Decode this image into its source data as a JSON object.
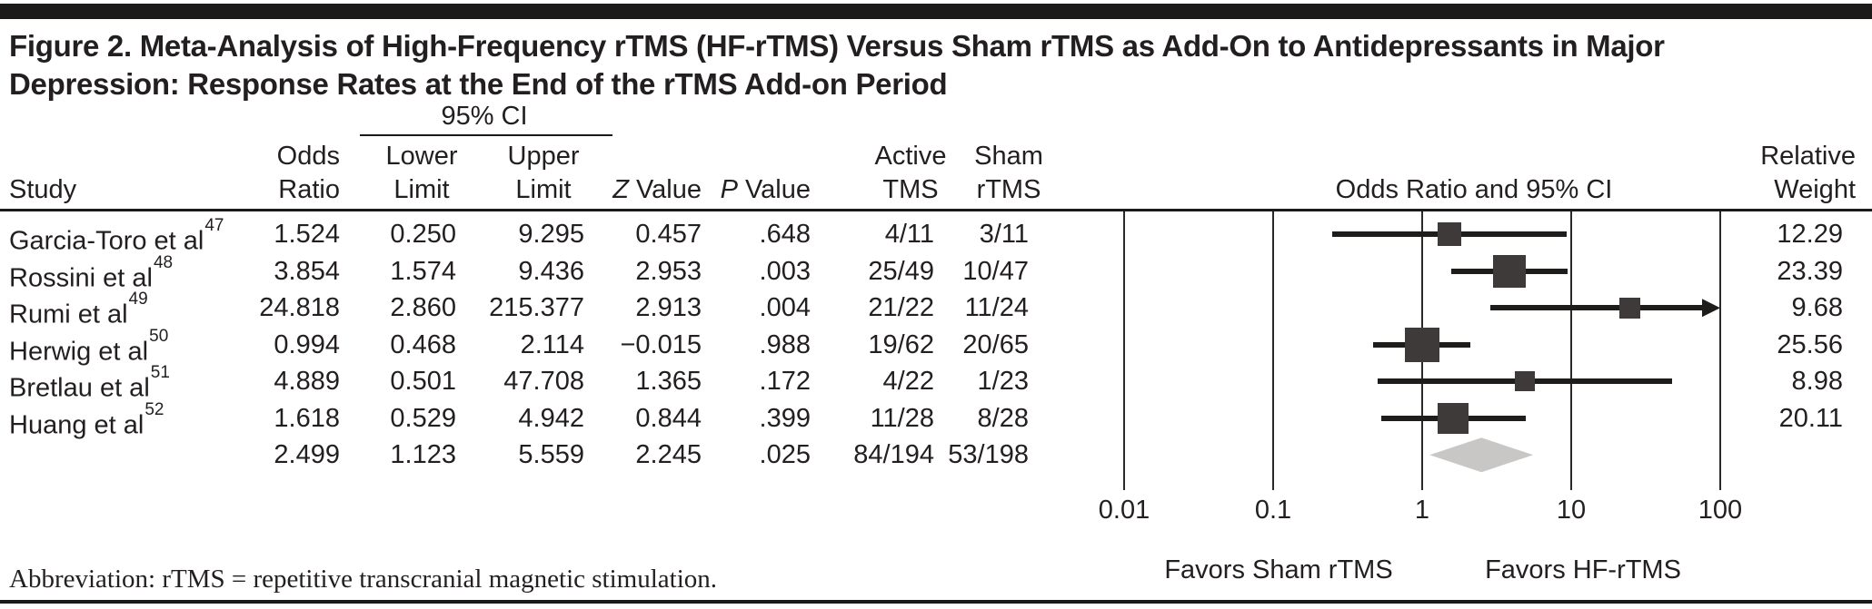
{
  "figure": {
    "title_line1": "Figure 2. Meta-Analysis of High-Frequency rTMS (HF-rTMS) Versus Sham rTMS as Add-On to Antidepressants in Major",
    "title_line2": "Depression: Response Rates at the End of the rTMS Add-on Period",
    "footnote": "Abbreviation: rTMS = repetitive transcranial magnetic stimulation."
  },
  "table": {
    "headers": {
      "study": "Study",
      "odds1": "Odds",
      "odds2": "Ratio",
      "ci_group": "95% CI",
      "lower1": "Lower",
      "lower2": "Limit",
      "upper1": "Upper",
      "upper2": "Limit",
      "z1": "Z",
      "z2": " Value",
      "p1": "P",
      "p2": " Value",
      "active1": "Active",
      "active2": "TMS",
      "sham1": "Sham",
      "sham2": "rTMS",
      "plot": "Odds Ratio and 95% CI",
      "weight1": "Relative",
      "weight2": "Weight"
    },
    "rows": [
      {
        "study": "Garcia-Toro et al",
        "ref": "47",
        "or": "1.524",
        "lower": "0.250",
        "upper": "9.295",
        "z": "0.457",
        "p": ".648",
        "active": "4/11",
        "sham": "3/11",
        "weight": "12.29"
      },
      {
        "study": "Rossini et al",
        "ref": "48",
        "or": "3.854",
        "lower": "1.574",
        "upper": "9.436",
        "z": "2.953",
        "p": ".003",
        "active": "25/49",
        "sham": "10/47",
        "weight": "23.39"
      },
      {
        "study": "Rumi et al",
        "ref": "49",
        "or": "24.818",
        "lower": "2.860",
        "upper": "215.377",
        "z": "2.913",
        "p": ".004",
        "active": "21/22",
        "sham": "11/24",
        "weight": "9.68"
      },
      {
        "study": "Herwig et al",
        "ref": "50",
        "or": "0.994",
        "lower": "0.468",
        "upper": "2.114",
        "z": "−0.015",
        "p": ".988",
        "active": "19/62",
        "sham": "20/65",
        "weight": "25.56"
      },
      {
        "study": "Bretlau et al",
        "ref": "51",
        "or": "4.889",
        "lower": "0.501",
        "upper": "47.708",
        "z": "1.365",
        "p": ".172",
        "active": "4/22",
        "sham": "1/23",
        "weight": "8.98"
      },
      {
        "study": "Huang et al",
        "ref": "52",
        "or": "1.618",
        "lower": "0.529",
        "upper": "4.942",
        "z": "0.844",
        "p": ".399",
        "active": "11/28",
        "sham": "8/28",
        "weight": "20.11"
      },
      {
        "study": "",
        "ref": "",
        "or": "2.499",
        "lower": "1.123",
        "upper": "5.559",
        "z": "2.245",
        "p": ".025",
        "active": "84/194",
        "sham": "53/198",
        "weight": ""
      }
    ]
  },
  "axis": {
    "ticks": [
      {
        "v": 0.01,
        "label": "0.01"
      },
      {
        "v": 0.1,
        "label": "0.1"
      },
      {
        "v": 1,
        "label": "1"
      },
      {
        "v": 10,
        "label": "10"
      },
      {
        "v": 100,
        "label": "100"
      }
    ],
    "favors_left": "Favors Sham rTMS",
    "favors_right": "Favors HF-rTMS"
  },
  "colors": {
    "text": "#231f20",
    "square": "#3e3a39",
    "ci_bar": "#1f1d1b",
    "diamond": "#c8c7c5",
    "rule": "#1b1a18"
  },
  "chart_data": {
    "type": "forest",
    "title": "Figure 2. Meta-Analysis of High-Frequency rTMS (HF-rTMS) Versus Sham rTMS as Add-On to Antidepressants in Major Depression: Response Rates at the End of the rTMS Add-on Period",
    "x_axis": {
      "scale": "log",
      "label": "Odds Ratio and 95% CI",
      "ticks": [
        0.01,
        0.1,
        1,
        10,
        100
      ],
      "range": [
        0.01,
        100
      ]
    },
    "favors": {
      "left": "Favors Sham rTMS",
      "right": "Favors HF-rTMS"
    },
    "studies": [
      {
        "study": "Garcia-Toro et al",
        "reference": 47,
        "odds_ratio": 1.524,
        "ci_lower": 0.25,
        "ci_upper": 9.295,
        "z_value": 0.457,
        "p_value": 0.648,
        "active_tms": "4/11",
        "sham_rtms": "3/11",
        "relative_weight": 12.29
      },
      {
        "study": "Rossini et al",
        "reference": 48,
        "odds_ratio": 3.854,
        "ci_lower": 1.574,
        "ci_upper": 9.436,
        "z_value": 2.953,
        "p_value": 0.003,
        "active_tms": "25/49",
        "sham_rtms": "10/47",
        "relative_weight": 23.39
      },
      {
        "study": "Rumi et al",
        "reference": 49,
        "odds_ratio": 24.818,
        "ci_lower": 2.86,
        "ci_upper": 215.377,
        "z_value": 2.913,
        "p_value": 0.004,
        "active_tms": "21/22",
        "sham_rtms": "11/24",
        "relative_weight": 9.68
      },
      {
        "study": "Herwig et al",
        "reference": 50,
        "odds_ratio": 0.994,
        "ci_lower": 0.468,
        "ci_upper": 2.114,
        "z_value": -0.015,
        "p_value": 0.988,
        "active_tms": "19/62",
        "sham_rtms": "20/65",
        "relative_weight": 25.56
      },
      {
        "study": "Bretlau et al",
        "reference": 51,
        "odds_ratio": 4.889,
        "ci_lower": 0.501,
        "ci_upper": 47.708,
        "z_value": 1.365,
        "p_value": 0.172,
        "active_tms": "4/22",
        "sham_rtms": "1/23",
        "relative_weight": 8.98
      },
      {
        "study": "Huang et al",
        "reference": 52,
        "odds_ratio": 1.618,
        "ci_lower": 0.529,
        "ci_upper": 4.942,
        "z_value": 0.844,
        "p_value": 0.399,
        "active_tms": "11/28",
        "sham_rtms": "8/28",
        "relative_weight": 20.11
      }
    ],
    "summary": {
      "odds_ratio": 2.499,
      "ci_lower": 1.123,
      "ci_upper": 5.559,
      "z_value": 2.245,
      "p_value": 0.025,
      "active_tms": "84/194",
      "sham_rtms": "53/198"
    }
  }
}
